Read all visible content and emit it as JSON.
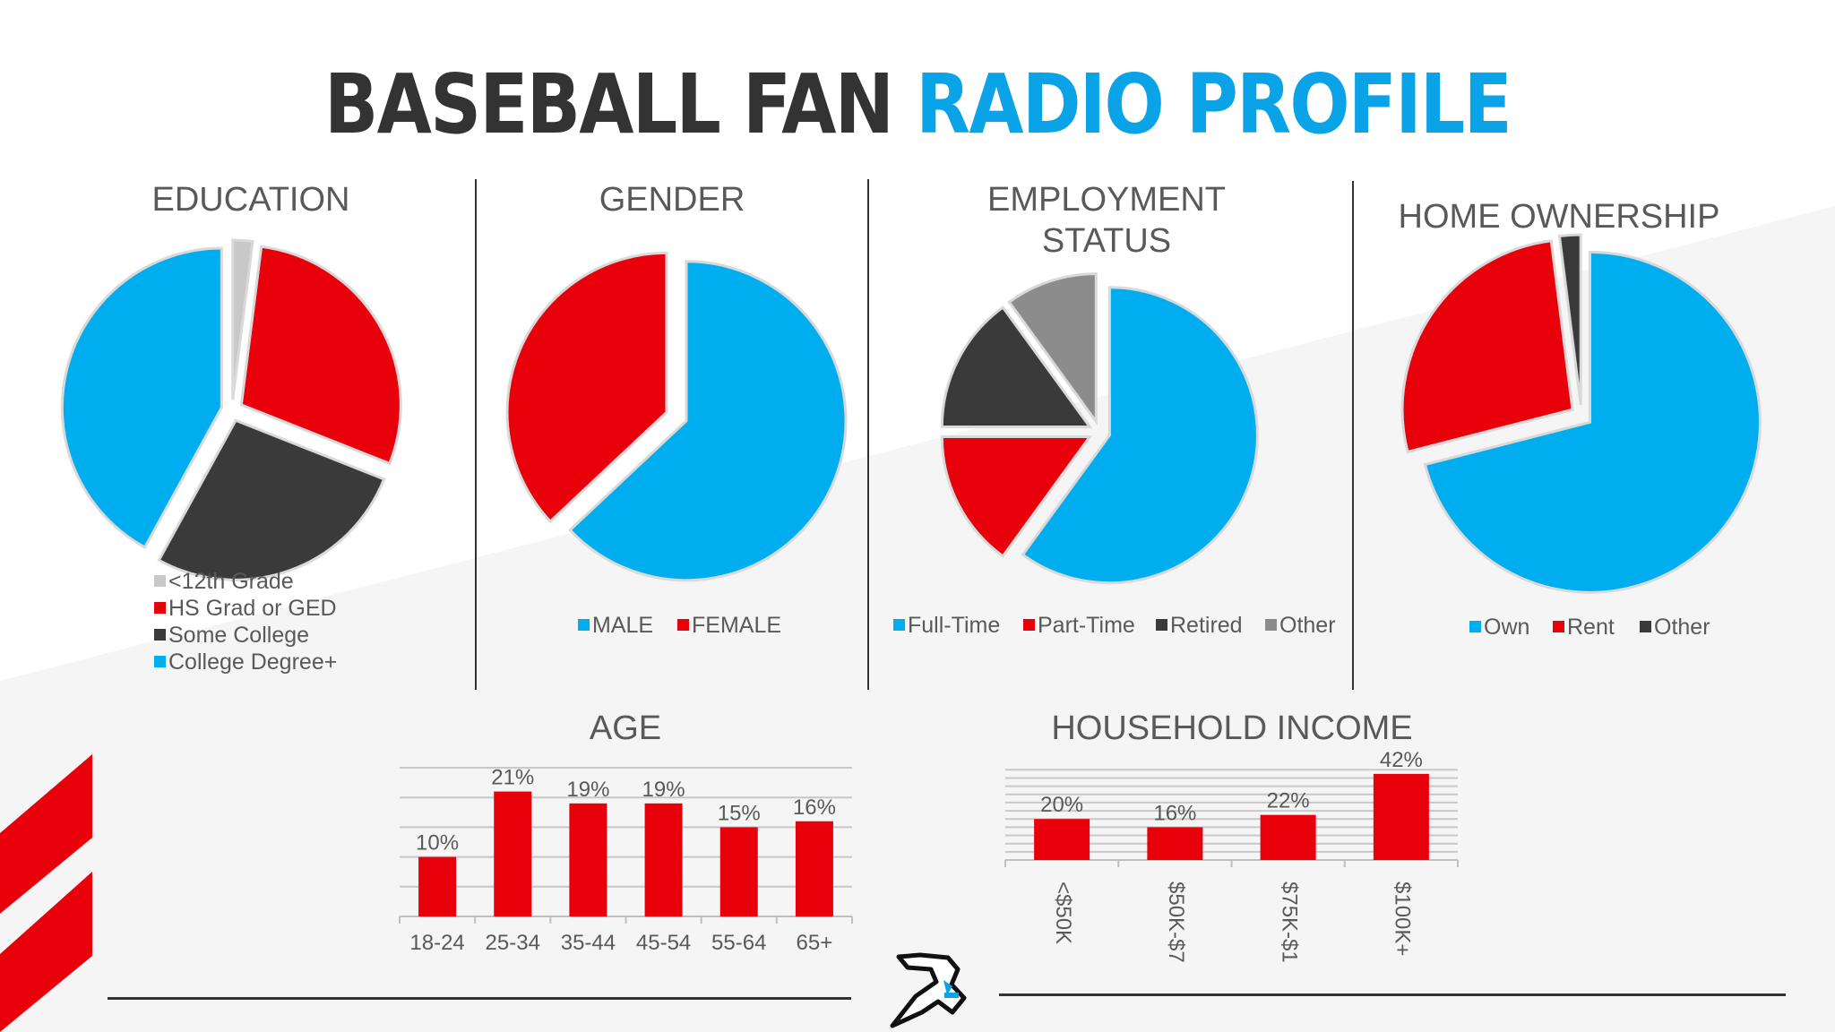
{
  "page_title": {
    "part1": "BASEBALL FAN",
    "part2": "RADIO PROFILE"
  },
  "colors": {
    "blue": "#00AEEF",
    "red": "#E8000A",
    "dark": "#3A3A3A",
    "gray": "#8C8C8C",
    "light": "#C8C8C8",
    "title_dark": "#333333",
    "title_blue": "#0AA3E8"
  },
  "chart_data": [
    {
      "type": "pie",
      "title": "EDUCATION",
      "labels": [
        "<12th Grade",
        "HS Grad or GED",
        "Some College",
        "College Degree+"
      ],
      "values": [
        2,
        29,
        27,
        42
      ],
      "colors": [
        "#C8C8C8",
        "#E8000A",
        "#3A3A3A",
        "#00AEEF"
      ],
      "exploded": true,
      "legend_position": "bottom-left"
    },
    {
      "type": "pie",
      "title": "GENDER",
      "labels": [
        "MALE",
        "FEMALE"
      ],
      "values": [
        63,
        37
      ],
      "colors": [
        "#00AEEF",
        "#E8000A"
      ],
      "exploded": true,
      "legend_position": "bottom"
    },
    {
      "type": "pie",
      "title": "EMPLOYMENT STATUS",
      "title_lines": [
        "EMPLOYMENT",
        "STATUS"
      ],
      "labels": [
        "Full-Time",
        "Part-Time",
        "Retired",
        "Other"
      ],
      "values": [
        60,
        15,
        15,
        10
      ],
      "colors": [
        "#00AEEF",
        "#E8000A",
        "#3A3A3A",
        "#8C8C8C"
      ],
      "exploded": true,
      "legend_position": "bottom"
    },
    {
      "type": "pie",
      "title": "HOME OWNERSHIP",
      "labels": [
        "Own",
        "Rent",
        "Other"
      ],
      "values": [
        71,
        27,
        2
      ],
      "colors": [
        "#00AEEF",
        "#E8000A",
        "#3A3A3A"
      ],
      "exploded": true,
      "legend_position": "bottom"
    },
    {
      "type": "bar",
      "title": "AGE",
      "categories": [
        "18-24",
        "25-34",
        "35-44",
        "45-54",
        "55-64",
        "65+"
      ],
      "values": [
        10,
        21,
        19,
        19,
        15,
        16
      ],
      "data_labels": [
        "10%",
        "21%",
        "19%",
        "19%",
        "15%",
        "16%"
      ],
      "color": "#E8000A",
      "ylim": [
        0,
        25
      ],
      "grid": true
    },
    {
      "type": "bar",
      "title": "HOUSEHOLD INCOME",
      "categories": [
        "<$50K",
        "$50K-$7",
        "$75K-$1",
        "$100K+"
      ],
      "values": [
        20,
        16,
        22,
        42
      ],
      "data_labels": [
        "20%",
        "16%",
        "22%",
        "42%"
      ],
      "color": "#E8000A",
      "ylim": [
        0,
        45
      ],
      "grid": true,
      "tick_label_rotation": 90
    }
  ]
}
